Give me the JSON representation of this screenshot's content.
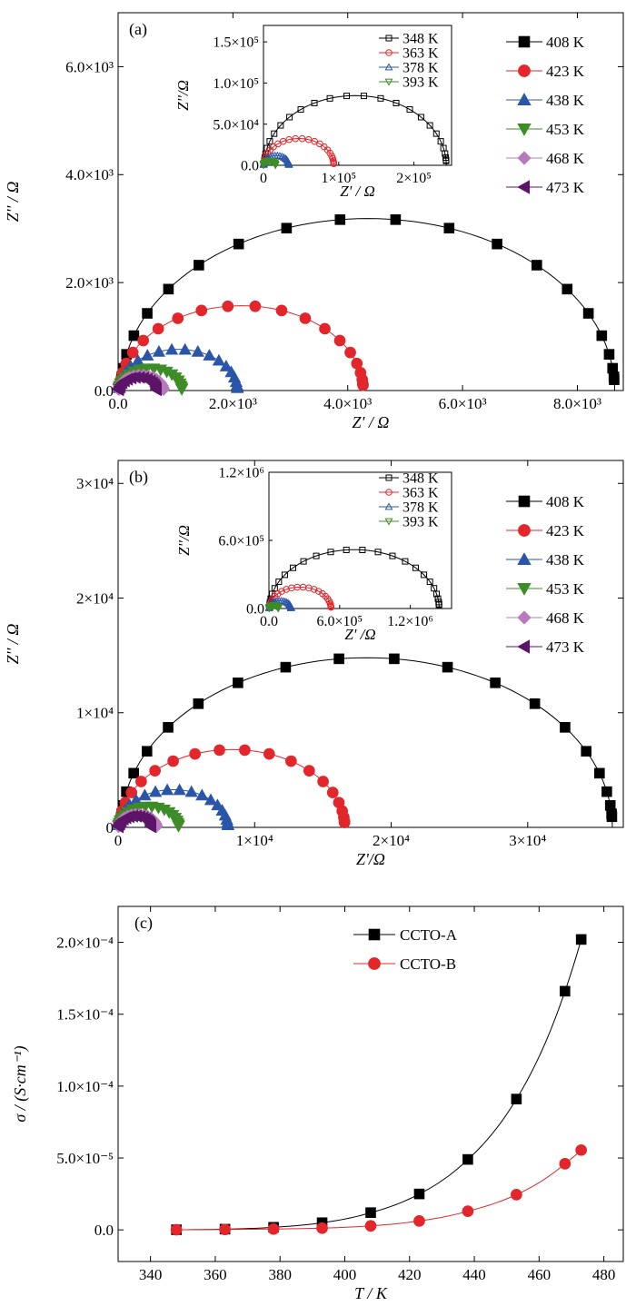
{
  "colors": {
    "408 K": "#000000",
    "423 K": "#e3262b",
    "438 K": "#2b55a8",
    "453 K": "#3e8c27",
    "468 K": "#b77bbb",
    "473 K": "#5c1468",
    "348 K": "#000000",
    "363 K": "#e3262b",
    "378 K": "#2b55a8",
    "393 K": "#3e8c27",
    "CCTO-A": "#000000",
    "CCTO-B": "#e3262b"
  },
  "markers": {
    "408 K": "square",
    "423 K": "circle",
    "438 K": "triangle-up",
    "453 K": "triangle-down",
    "468 K": "diamond",
    "473 K": "triangle-left",
    "348 K": "square",
    "363 K": "circle",
    "378 K": "triangle-up",
    "393 K": "triangle-down"
  },
  "chart_data": [
    {
      "id": "a",
      "type": "scatter",
      "panel_label": "(a)",
      "xlabel": "Z' / Ω",
      "ylabel": "Z'' / Ω",
      "xlim": [
        0,
        8800
      ],
      "ylim": [
        0,
        7000
      ],
      "xticks": [
        0,
        2000,
        4000,
        6000,
        8000
      ],
      "xtick_labels": [
        "0.0",
        "2.0×10³",
        "4.0×10³",
        "6.0×10³",
        "8.0×10³"
      ],
      "yticks": [
        0,
        2000,
        4000,
        6000
      ],
      "ytick_labels": [
        "0.0",
        "2.0×10³",
        "4.0×10³",
        "6.0×10³"
      ],
      "legend_position": "top-right",
      "series": [
        {
          "name": "408 K",
          "center": 4350,
          "radius": 4300,
          "shift": 1150,
          "r0": 50
        },
        {
          "name": "423 K",
          "center": 2150,
          "radius": 2120,
          "shift": 550,
          "r0": 30
        },
        {
          "name": "438 K",
          "center": 1050,
          "radius": 1030,
          "shift": 220,
          "r0": 20
        },
        {
          "name": "453 K",
          "center": 560,
          "radius": 550,
          "shift": 120,
          "r0": 10
        },
        {
          "name": "468 K",
          "center": 400,
          "radius": 390,
          "shift": 80,
          "r0": 10
        },
        {
          "name": "473 K",
          "center": 340,
          "radius": 330,
          "shift": 70,
          "r0": 10
        }
      ],
      "inset": {
        "xlabel": "Z' / Ω",
        "ylabel": "Z''/Ω",
        "xlim": [
          0,
          250000
        ],
        "ylim": [
          0,
          170000
        ],
        "xticks": [
          0,
          100000,
          200000
        ],
        "xtick_labels": [
          "0",
          "1×10⁵",
          "2×10⁵"
        ],
        "yticks": [
          0,
          50000,
          100000,
          150000
        ],
        "ytick_labels": [
          "0.0",
          "5.0×10⁴",
          "1.0×10⁵",
          "1.5×10⁵"
        ],
        "legend_position": "top-right",
        "series": [
          {
            "name": "348 K",
            "center": 122000,
            "radius": 121000,
            "shift": 35000,
            "r0": 1000
          },
          {
            "name": "363 K",
            "center": 47000,
            "radius": 46500,
            "shift": 12000,
            "r0": 500
          },
          {
            "name": "378 K",
            "center": 17000,
            "radius": 16800,
            "shift": 3000,
            "r0": 200
          },
          {
            "name": "393 K",
            "center": 8000,
            "radius": 7900,
            "shift": 1500,
            "r0": 100
          }
        ]
      }
    },
    {
      "id": "b",
      "type": "scatter",
      "panel_label": "(b)",
      "xlabel": "Z'/Ω",
      "ylabel": "Z'' / Ω",
      "xlim": [
        0,
        37000
      ],
      "ylim": [
        0,
        32000
      ],
      "xticks": [
        0,
        10000,
        20000,
        30000
      ],
      "xtick_labels": [
        "0",
        "1×10⁴",
        "2×10⁴",
        "3×10⁴"
      ],
      "yticks": [
        0,
        10000,
        20000,
        30000
      ],
      "ytick_labels": [
        "0",
        "1×10⁴",
        "2×10⁴",
        "3×10⁴"
      ],
      "legend_position": "top-right",
      "series": [
        {
          "name": "408 K",
          "center": 18200,
          "radius": 18000,
          "shift": 3500,
          "r0": 200
        },
        {
          "name": "423 K",
          "center": 8350,
          "radius": 8250,
          "shift": 1500,
          "r0": 100
        },
        {
          "name": "438 K",
          "center": 4050,
          "radius": 4000,
          "shift": 700,
          "r0": 50
        },
        {
          "name": "453 K",
          "center": 2230,
          "radius": 2200,
          "shift": 400,
          "r0": 30
        },
        {
          "name": "468 K",
          "center": 1420,
          "radius": 1400,
          "shift": 300,
          "r0": 20
        },
        {
          "name": "473 K",
          "center": 1220,
          "radius": 1200,
          "shift": 250,
          "r0": 20
        }
      ],
      "inset": {
        "xlabel": "Z' /Ω",
        "ylabel": "Z''/Ω",
        "xlim": [
          0,
          1550000
        ],
        "ylim": [
          0,
          1200000
        ],
        "xticks": [
          0,
          600000,
          1200000
        ],
        "xtick_labels": [
          "0.0",
          "6.0×10⁵",
          "1.2×10⁶"
        ],
        "yticks": [
          0,
          600000,
          1200000
        ],
        "ytick_labels": [
          "0.0",
          "6.0×10⁵",
          "1.2×10⁶"
        ],
        "legend_position": "top-right",
        "series": [
          {
            "name": "348 K",
            "center": 725000,
            "radius": 720000,
            "shift": 220000,
            "r0": 5000
          },
          {
            "name": "363 K",
            "center": 265000,
            "radius": 262000,
            "shift": 80000,
            "r0": 3000
          },
          {
            "name": "378 K",
            "center": 95000,
            "radius": 93000,
            "shift": 20000,
            "r0": 2000
          },
          {
            "name": "393 K",
            "center": 40000,
            "radius": 39000,
            "shift": 8000,
            "r0": 1000
          }
        ]
      }
    },
    {
      "id": "c",
      "type": "line",
      "panel_label": "(c)",
      "xlabel": "T / K",
      "ylabel": "σ / (S·cm⁻¹)",
      "xlim": [
        330,
        486
      ],
      "ylim": [
        -2.2e-05,
        0.000225
      ],
      "xticks": [
        340,
        360,
        380,
        400,
        420,
        440,
        460,
        480
      ],
      "xtick_labels": [
        "340",
        "360",
        "380",
        "400",
        "420",
        "440",
        "460",
        "480"
      ],
      "yticks": [
        0,
        5e-05,
        0.0001,
        0.00015,
        0.0002
      ],
      "ytick_labels": [
        "0.0",
        "5.0×10⁻⁵",
        "1.0×10⁻⁴",
        "1.5×10⁻⁴",
        "2.0×10⁻⁴"
      ],
      "legend_position": "top-left",
      "x": [
        348,
        363,
        378,
        393,
        408,
        423,
        438,
        453,
        468,
        473
      ],
      "series": [
        {
          "name": "CCTO-A",
          "marker": "square",
          "values": [
            1e-07,
            5e-07,
            1.8e-06,
            5e-06,
            1.2e-05,
            2.5e-05,
            4.9e-05,
            9.1e-05,
            0.000166,
            0.000202
          ]
        },
        {
          "name": "CCTO-B",
          "marker": "circle",
          "values": [
            1e-07,
            3e-07,
            6e-07,
            1.2e-06,
            2.8e-06,
            6.2e-06,
            1.3e-05,
            2.45e-05,
            4.6e-05,
            5.55e-05
          ]
        }
      ]
    }
  ]
}
